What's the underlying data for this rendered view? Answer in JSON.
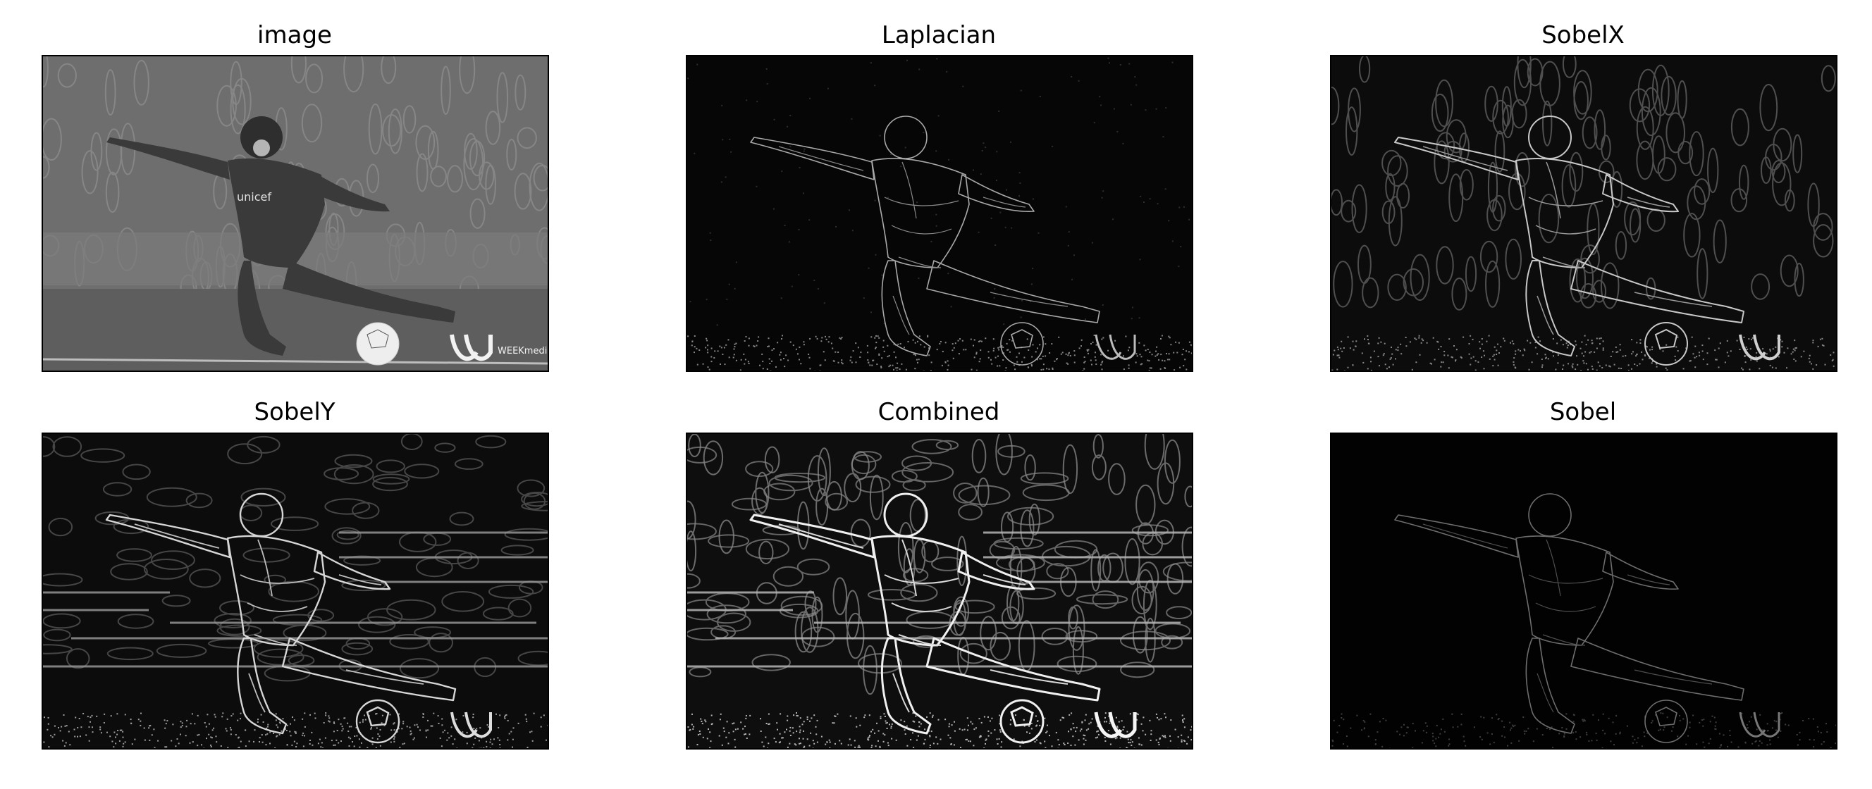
{
  "figure": {
    "panels": [
      {
        "id": "image",
        "title": "image",
        "background": "#8a8a8a",
        "kind": "photo"
      },
      {
        "id": "laplacian",
        "title": "Laplacian",
        "background": "#060606",
        "kind": "edges-faint"
      },
      {
        "id": "sobelx",
        "title": "SobelX",
        "background": "#0c0c0c",
        "kind": "edges-vertical"
      },
      {
        "id": "sobely",
        "title": "SobelY",
        "background": "#0c0c0c",
        "kind": "edges-horizontal"
      },
      {
        "id": "combined",
        "title": "Combined",
        "background": "#0e0e0e",
        "kind": "edges-strong"
      },
      {
        "id": "sobel",
        "title": "Sobel",
        "background": "#020202",
        "kind": "edges-dim"
      }
    ],
    "logo_text": "WEEKmedia",
    "shirt_text": "unicef"
  }
}
